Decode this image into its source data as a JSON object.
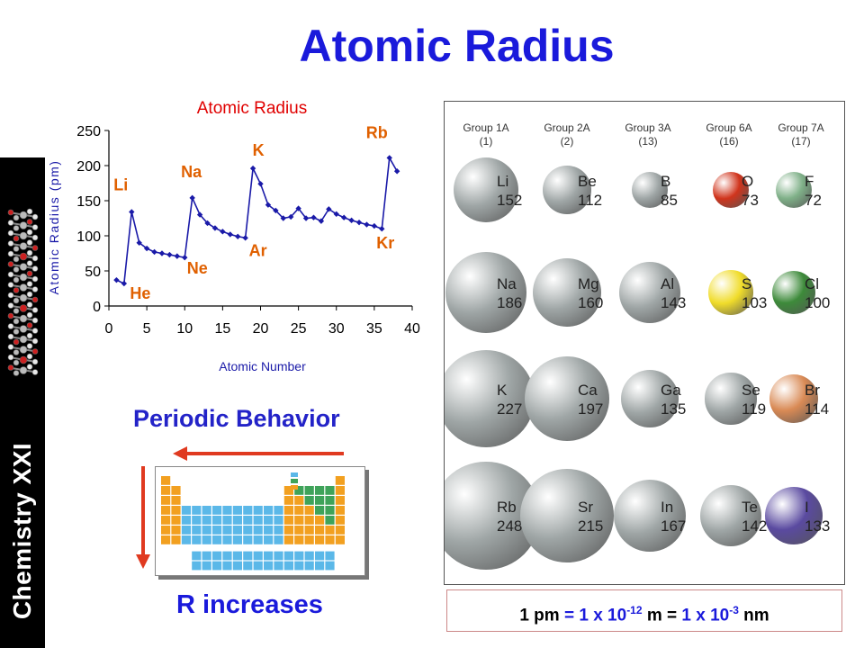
{
  "page": {
    "title": "Atomic Radius",
    "sidebar_label": "Chemistry XXI",
    "periodic_behavior": "Periodic Behavior",
    "r_increases": "R increases",
    "conversion": {
      "part1": "1 pm",
      "eq1": "=",
      "part2a": "1 x 10",
      "exp1": "-12",
      "unit_m": "m",
      "eq2": "=",
      "part3a": "1 x 10",
      "exp2": "-3",
      "unit_nm": "nm"
    }
  },
  "colors": {
    "title_blue": "#1a1adb",
    "line_blue": "#1a1aa8",
    "chart_title_red": "#e00000",
    "label_orange": "#e06000",
    "axis_label_blue": "#1a1aa8",
    "arrow_red": "#e03a20"
  },
  "chart_data": {
    "type": "line",
    "title": "Atomic Radius",
    "xlabel": "Atomic Number",
    "ylabel": "Atomic Radius (pm)",
    "xlim": [
      0,
      40
    ],
    "ylim": [
      0,
      250
    ],
    "xticks": [
      0,
      5,
      10,
      15,
      20,
      25,
      30,
      35,
      40
    ],
    "yticks": [
      0,
      50,
      100,
      150,
      200,
      250
    ],
    "grid": false,
    "series": [
      {
        "x": [
          1,
          2,
          3,
          4,
          5,
          6,
          7,
          8,
          9,
          10,
          11,
          12,
          13,
          14,
          15,
          16,
          17,
          18,
          19,
          20,
          21,
          22,
          23,
          24,
          25,
          26,
          27,
          28,
          29,
          30,
          31,
          32,
          33,
          34,
          35,
          36,
          37,
          38
        ],
        "values": [
          37,
          32,
          134,
          90,
          82,
          77,
          75,
          73,
          71,
          69,
          154,
          130,
          118,
          111,
          106,
          102,
          99,
          97,
          196,
          174,
          144,
          136,
          125,
          127,
          139,
          125,
          126,
          121,
          138,
          131,
          126,
          122,
          119,
          116,
          114,
          110,
          211,
          192
        ]
      }
    ],
    "annotations": [
      {
        "text": "Li",
        "x": 3,
        "y": 134
      },
      {
        "text": "Na",
        "x": 11,
        "y": 154
      },
      {
        "text": "K",
        "x": 19,
        "y": 196
      },
      {
        "text": "Rb",
        "x": 37,
        "y": 211
      },
      {
        "text": "He",
        "x": 2,
        "y": 32
      },
      {
        "text": "Ne",
        "x": 10,
        "y": 69
      },
      {
        "text": "Ar",
        "x": 18,
        "y": 97
      },
      {
        "text": "Kr",
        "x": 36,
        "y": 110
      }
    ]
  },
  "radius_table": {
    "groups": [
      {
        "name": "Group 1A",
        "num": "(1)"
      },
      {
        "name": "Group 2A",
        "num": "(2)"
      },
      {
        "name": "Group 3A",
        "num": "(13)"
      },
      {
        "name": "Group 6A",
        "num": "(16)"
      },
      {
        "name": "Group 7A",
        "num": "(17)"
      }
    ],
    "rows": [
      [
        {
          "sym": "Li",
          "val": "152",
          "color": "#9fa6a6"
        },
        {
          "sym": "Be",
          "val": "112",
          "color": "#9fa6a6"
        },
        {
          "sym": "B",
          "val": "85",
          "color": "#9fa6a6"
        },
        {
          "sym": "O",
          "val": "73",
          "color": "#d0341c"
        },
        {
          "sym": "F",
          "val": "72",
          "color": "#7fb088"
        }
      ],
      [
        {
          "sym": "Na",
          "val": "186",
          "color": "#9fa6a6"
        },
        {
          "sym": "Mg",
          "val": "160",
          "color": "#9fa6a6"
        },
        {
          "sym": "Al",
          "val": "143",
          "color": "#9fa6a6"
        },
        {
          "sym": "S",
          "val": "103",
          "color": "#f0dc2a"
        },
        {
          "sym": "Cl",
          "val": "100",
          "color": "#3d8a3a"
        }
      ],
      [
        {
          "sym": "K",
          "val": "227",
          "color": "#9fa6a6"
        },
        {
          "sym": "Ca",
          "val": "197",
          "color": "#9fa6a6"
        },
        {
          "sym": "Ga",
          "val": "135",
          "color": "#9fa6a6"
        },
        {
          "sym": "Se",
          "val": "119",
          "color": "#9fa6a6"
        },
        {
          "sym": "Br",
          "val": "114",
          "color": "#d98a55"
        }
      ],
      [
        {
          "sym": "Rb",
          "val": "248",
          "color": "#9fa6a6"
        },
        {
          "sym": "Sr",
          "val": "215",
          "color": "#9fa6a6"
        },
        {
          "sym": "In",
          "val": "167",
          "color": "#9fa6a6"
        },
        {
          "sym": "Te",
          "val": "142",
          "color": "#9fa6a6"
        },
        {
          "sym": "I",
          "val": "133",
          "color": "#5a4aa0"
        }
      ]
    ]
  }
}
